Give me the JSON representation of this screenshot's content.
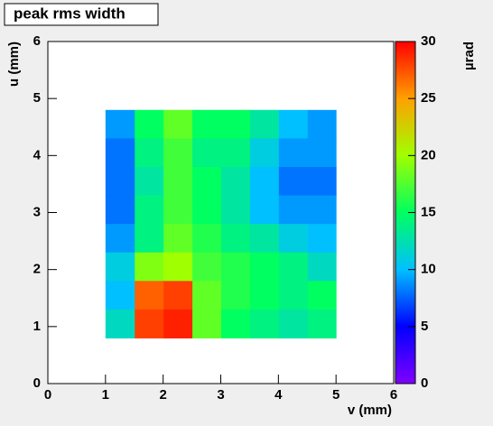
{
  "chart_data": {
    "type": "heatmap",
    "title": "peak rms width",
    "x_label": "v (mm)",
    "y_label": "u (mm)",
    "z_label": "µrad",
    "xbins": [
      1,
      1.5,
      2,
      2.5,
      3,
      3.5,
      4,
      4.5,
      5
    ],
    "ybins": [
      0.8,
      1.3,
      1.8,
      2.3,
      2.8,
      3.3,
      3.8,
      4.3,
      4.8
    ],
    "z": [
      [
        12,
        28,
        29,
        18,
        15,
        14,
        13,
        14
      ],
      [
        10,
        27,
        28,
        18,
        16,
        15,
        14,
        15
      ],
      [
        11,
        19,
        20,
        17,
        16,
        15,
        14,
        12
      ],
      [
        9,
        14,
        18,
        16,
        14,
        13,
        11,
        10
      ],
      [
        8,
        14,
        17,
        15,
        13,
        10,
        9,
        9
      ],
      [
        8,
        13,
        17,
        15,
        13,
        10,
        8,
        8
      ],
      [
        8,
        14,
        17,
        14,
        14,
        11,
        9,
        9
      ],
      [
        9,
        15,
        18,
        15,
        15,
        13,
        10,
        9
      ]
    ],
    "xlim": [
      0,
      6
    ],
    "xticks": [
      0,
      1,
      2,
      3,
      4,
      5,
      6
    ],
    "ylim": [
      0,
      6
    ],
    "yticks": [
      0,
      1,
      2,
      3,
      4,
      5,
      6
    ],
    "zlim": [
      0,
      30
    ],
    "zticks": [
      0,
      5,
      10,
      15,
      20,
      25,
      30
    ],
    "palette": [
      "#8000ff",
      "#0000ff",
      "#00c0ff",
      "#00ff60",
      "#a0ff00",
      "#ffa000",
      "#ff0000"
    ]
  }
}
